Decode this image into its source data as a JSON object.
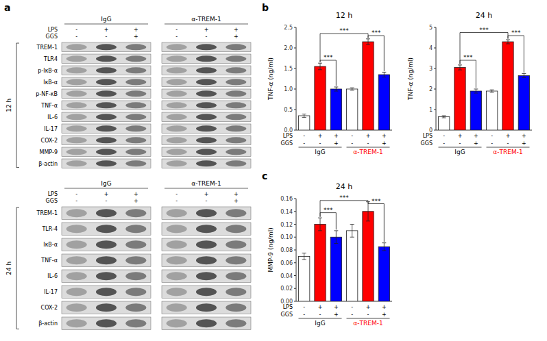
{
  "panel_labels": [
    "a",
    "b",
    "c"
  ],
  "chart_data": [
    {
      "type": "bar",
      "title": "12 h",
      "y_label": "TNF-α (ng/ml)",
      "ylim": [
        0,
        2.5
      ],
      "yticks": [
        {
          "value": 0,
          "label": "0.0"
        },
        0.5,
        {
          "value": 1.0,
          "label": "1.0"
        },
        1.5,
        {
          "value": 2.0,
          "label": "2.0"
        },
        2.5
      ],
      "groups": [
        "IgG",
        "α-TREM-1"
      ],
      "group_colors": [
        "black",
        "red"
      ],
      "x_label_rows": [
        {
          "name": "LPS",
          "labels": [
            "-",
            "+",
            "+",
            "-",
            "+",
            "+"
          ]
        },
        {
          "name": "GGS",
          "labels": [
            "-",
            "-",
            "+",
            "-",
            "-",
            "+"
          ]
        }
      ],
      "values": [
        0.35,
        1.55,
        1.0,
        1.0,
        2.15,
        1.35
      ],
      "errors": [
        0.04,
        0.08,
        0.05,
        0.03,
        0.07,
        0.06
      ],
      "colors": [
        "white",
        "red",
        "blue",
        "white",
        "red",
        "blue"
      ],
      "annotations": [
        {
          "x1": 1,
          "x2": 2,
          "y": 1.7,
          "text": "***"
        },
        {
          "x1": 1,
          "x2": 4,
          "y": 2.35,
          "text": "***"
        },
        {
          "x1": 4,
          "x2": 5,
          "y": 2.3,
          "text": "***"
        }
      ]
    },
    {
      "type": "bar",
      "title": "24 h",
      "y_label": "TNF-α (ng/ml)",
      "ylim": [
        0,
        5
      ],
      "yticks": [
        0,
        1,
        2,
        3,
        4,
        5
      ],
      "groups": [
        "IgG",
        "α-TREM-1"
      ],
      "group_colors": [
        "black",
        "red"
      ],
      "x_label_rows": [
        {
          "name": "LPS",
          "labels": [
            "-",
            "+",
            "+",
            "-",
            "+",
            "+"
          ]
        },
        {
          "name": "GGS",
          "labels": [
            "-",
            "-",
            "+",
            "-",
            "-",
            "+"
          ]
        }
      ],
      "values": [
        0.65,
        3.05,
        1.9,
        1.9,
        4.3,
        2.65
      ],
      "errors": [
        0.05,
        0.12,
        0.1,
        0.06,
        0.1,
        0.1
      ],
      "colors": [
        "white",
        "red",
        "blue",
        "white",
        "red",
        "blue"
      ],
      "annotations": [
        {
          "x1": 1,
          "x2": 2,
          "y": 3.4,
          "text": "***"
        },
        {
          "x1": 1,
          "x2": 4,
          "y": 4.75,
          "text": "***"
        },
        {
          "x1": 4,
          "x2": 5,
          "y": 4.6,
          "text": "***"
        }
      ]
    },
    {
      "type": "bar",
      "title": "24 h",
      "y_label": "MMP-9 (ng/ml)",
      "ylim": [
        0,
        0.16
      ],
      "yticks": [
        {
          "value": 0,
          "label": "0.00"
        },
        0.02,
        0.04,
        0.06,
        0.08,
        {
          "value": 0.1,
          "label": "0.10"
        },
        0.12,
        0.14,
        0.16
      ],
      "groups": [
        "IgG",
        "α-TREM-1"
      ],
      "group_colors": [
        "black",
        "red"
      ],
      "x_label_rows": [
        {
          "name": "LPS",
          "labels": [
            "-",
            "+",
            "+",
            "-",
            "+",
            "+"
          ]
        },
        {
          "name": "GGS",
          "labels": [
            "-",
            "-",
            "+",
            "-",
            "-",
            "+"
          ]
        }
      ],
      "values": [
        0.07,
        0.12,
        0.1,
        0.11,
        0.14,
        0.085
      ],
      "errors": [
        0.005,
        0.01,
        0.01,
        0.01,
        0.015,
        0.006
      ],
      "colors": [
        "white",
        "red",
        "blue",
        "white",
        "red",
        "blue"
      ],
      "annotations": [
        {
          "x1": 1,
          "x2": 2,
          "y": 0.138,
          "text": "***"
        },
        {
          "x1": 1,
          "x2": 4,
          "y": 0.157,
          "text": "***"
        },
        {
          "x1": 4,
          "x2": 5,
          "y": 0.152,
          "text": "***"
        }
      ]
    }
  ],
  "western_blots": {
    "groups": [
      "IgG",
      "α-TREM-1"
    ],
    "header_rows": [
      {
        "name": "LPS",
        "labels": [
          "-",
          "+",
          "+"
        ]
      },
      {
        "name": "GGS",
        "labels": [
          "-",
          "-",
          "+"
        ]
      }
    ],
    "panels": [
      {
        "time_label": "12 h",
        "rows": [
          "TREM-1",
          "TLR4",
          "p-IκB-α",
          "IκB-α",
          "p-NF-κB",
          "TNF-α",
          "IL-6",
          "IL-17",
          "COX-2",
          "MMP-9",
          "β-actin"
        ]
      },
      {
        "time_label": "24 h",
        "rows": [
          "TREM-1",
          "TLR-4",
          "IκB-α",
          "TNF-α",
          "IL-6",
          "IL-17",
          "COX-2",
          "β-actin"
        ]
      }
    ]
  }
}
